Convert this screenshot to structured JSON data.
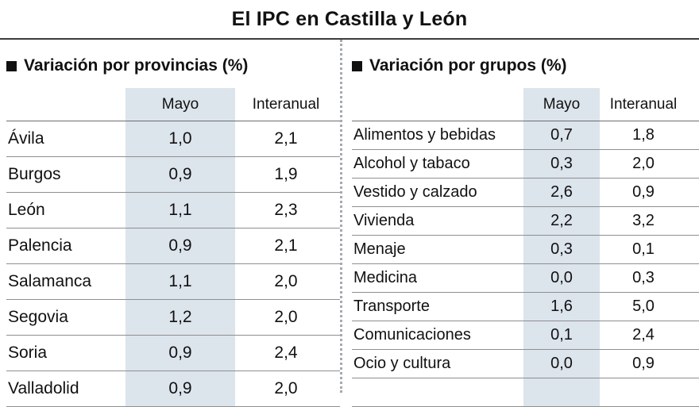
{
  "title": "El IPC en Castilla y León",
  "tables": [
    {
      "section_title": "Variación por provincias (%)",
      "col_mayo": "Mayo",
      "col_interanual": "Interanual",
      "rows": [
        {
          "label": "Ávila",
          "mayo": "1,0",
          "interanual": "2,1"
        },
        {
          "label": "Burgos",
          "mayo": "0,9",
          "interanual": "1,9"
        },
        {
          "label": "León",
          "mayo": "1,1",
          "interanual": "2,3"
        },
        {
          "label": "Palencia",
          "mayo": "0,9",
          "interanual": "2,1"
        },
        {
          "label": "Salamanca",
          "mayo": "1,1",
          "interanual": "2,0"
        },
        {
          "label": "Segovia",
          "mayo": "1,2",
          "interanual": "2,0"
        },
        {
          "label": "Soria",
          "mayo": "0,9",
          "interanual": "2,4"
        },
        {
          "label": "Valladolid",
          "mayo": "0,9",
          "interanual": "2,0"
        }
      ]
    },
    {
      "section_title": "Variación por grupos (%)",
      "col_mayo": "Mayo",
      "col_interanual": "Interanual",
      "rows": [
        {
          "label": "Alimentos y bebidas",
          "mayo": "0,7",
          "interanual": "1,8"
        },
        {
          "label": "Alcohol y tabaco",
          "mayo": "0,3",
          "interanual": "2,0"
        },
        {
          "label": "Vestido y calzado",
          "mayo": "2,6",
          "interanual": "0,9"
        },
        {
          "label": "Vivienda",
          "mayo": "2,2",
          "interanual": "3,2"
        },
        {
          "label": "Menaje",
          "mayo": "0,3",
          "interanual": "0,1"
        },
        {
          "label": "Medicina",
          "mayo": "0,0",
          "interanual": "0,3"
        },
        {
          "label": "Transporte",
          "mayo": "1,6",
          "interanual": "5,0"
        },
        {
          "label": "Comunicaciones",
          "mayo": "0,1",
          "interanual": "2,4"
        },
        {
          "label": "Ocio y cultura",
          "mayo": "0,0",
          "interanual": "0,9"
        }
      ]
    }
  ],
  "colors": {
    "mayo_column_bg": "#dce4ec",
    "row_line": "#8f8f8f",
    "text": "#111111"
  },
  "chart_data": [
    {
      "type": "table",
      "title": "Variación por provincias (%)",
      "columns": [
        "",
        "Mayo",
        "Interanual"
      ],
      "rows": [
        [
          "Ávila",
          1.0,
          2.1
        ],
        [
          "Burgos",
          0.9,
          1.9
        ],
        [
          "León",
          1.1,
          2.3
        ],
        [
          "Palencia",
          0.9,
          2.1
        ],
        [
          "Salamanca",
          1.1,
          2.0
        ],
        [
          "Segovia",
          1.2,
          2.0
        ],
        [
          "Soria",
          0.9,
          2.4
        ],
        [
          "Valladolid",
          0.9,
          2.0
        ]
      ]
    },
    {
      "type": "table",
      "title": "Variación por grupos (%)",
      "columns": [
        "",
        "Mayo",
        "Interanual"
      ],
      "rows": [
        [
          "Alimentos y bebidas",
          0.7,
          1.8
        ],
        [
          "Alcohol y tabaco",
          0.3,
          2.0
        ],
        [
          "Vestido y calzado",
          2.6,
          0.9
        ],
        [
          "Vivienda",
          2.2,
          3.2
        ],
        [
          "Menaje",
          0.3,
          0.1
        ],
        [
          "Medicina",
          0.0,
          0.3
        ],
        [
          "Transporte",
          1.6,
          5.0
        ],
        [
          "Comunicaciones",
          0.1,
          2.4
        ],
        [
          "Ocio y cultura",
          0.0,
          0.9
        ]
      ]
    }
  ]
}
